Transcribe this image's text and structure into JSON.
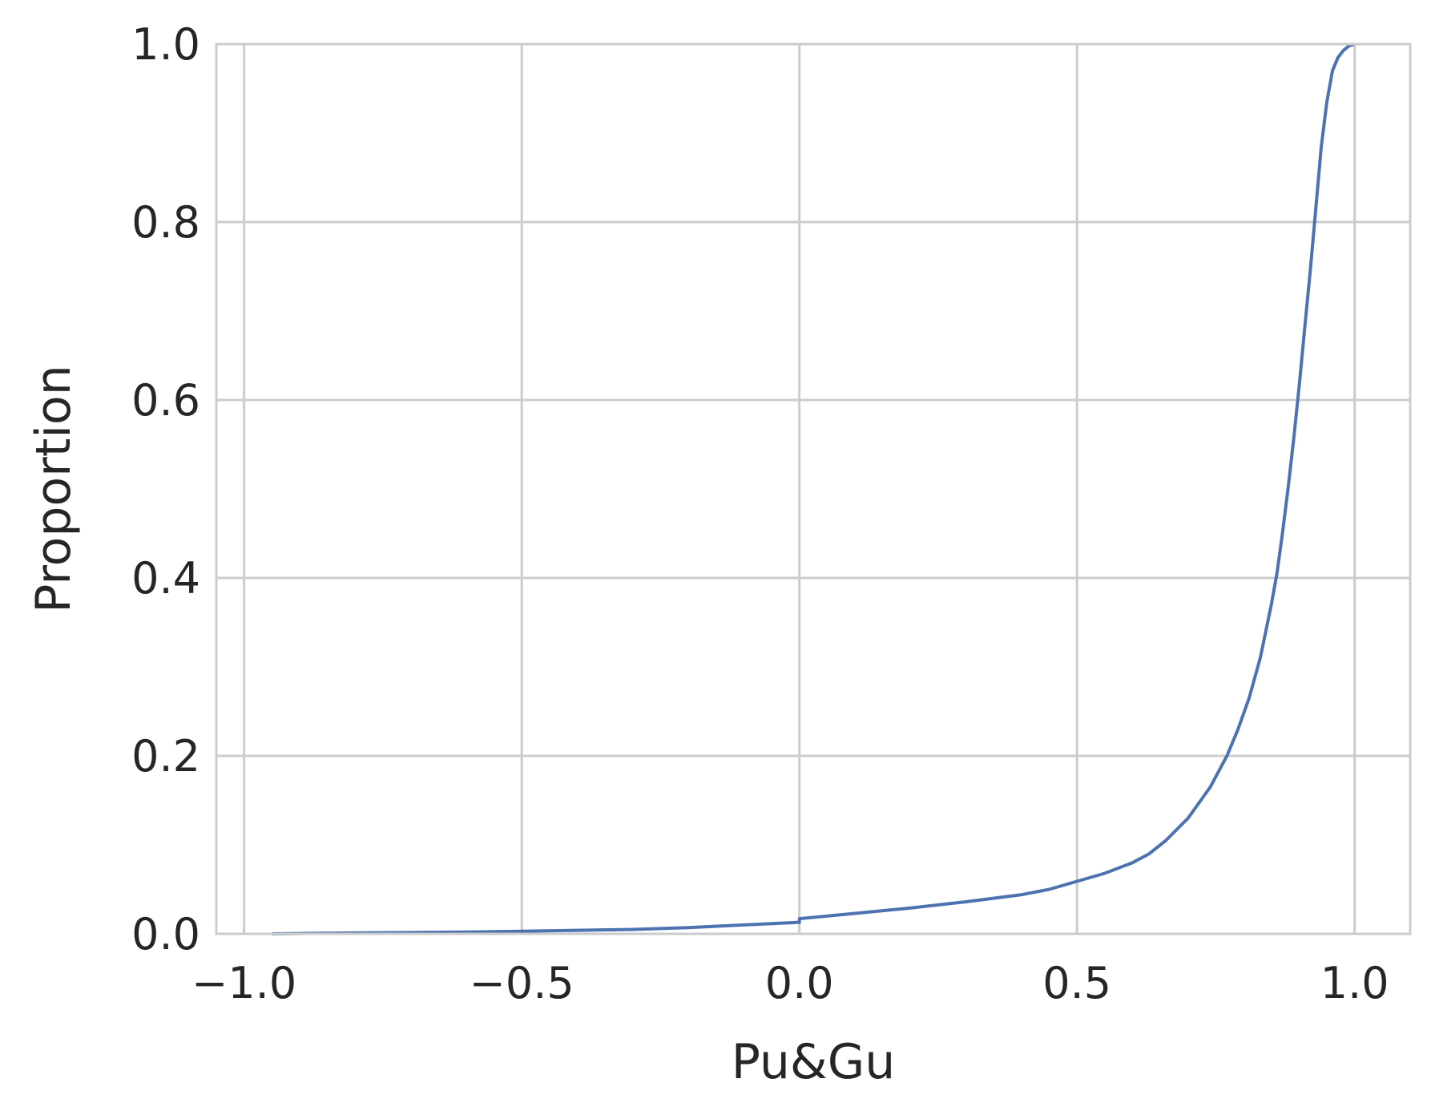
{
  "chart_data": {
    "type": "line",
    "title": "",
    "xlabel": "Pu&Gu",
    "ylabel": "Proportion",
    "xlim": [
      -1.05,
      1.1
    ],
    "ylim": [
      0.0,
      1.0
    ],
    "xticks": [
      -1.0,
      -0.5,
      0.0,
      0.5,
      1.0
    ],
    "xtick_labels": [
      "−1.0",
      "−0.5",
      "0.0",
      "0.5",
      "1.0"
    ],
    "yticks": [
      0.0,
      0.2,
      0.4,
      0.6,
      0.8,
      1.0
    ],
    "ytick_labels": [
      "0.0",
      "0.2",
      "0.4",
      "0.6",
      "0.8",
      "1.0"
    ],
    "grid": true,
    "line_color": "#4c72b0",
    "grid_color": "#cccccc",
    "text_color": "#262626",
    "series": [
      {
        "x": [
          -0.95,
          -0.8,
          -0.6,
          -0.4,
          -0.3,
          -0.2,
          -0.1,
          0.0,
          0.0,
          0.1,
          0.2,
          0.3,
          0.4,
          0.45,
          0.5,
          0.55,
          0.6,
          0.63,
          0.66,
          0.7,
          0.74,
          0.77,
          0.79,
          0.81,
          0.83,
          0.84,
          0.85,
          0.86,
          0.87,
          0.88,
          0.89,
          0.9,
          0.91,
          0.92,
          0.93,
          0.94,
          0.95,
          0.96,
          0.97,
          0.98,
          0.99,
          1.0
        ],
        "y": [
          0.0,
          0.001,
          0.002,
          0.004,
          0.005,
          0.007,
          0.01,
          0.013,
          0.017,
          0.023,
          0.029,
          0.036,
          0.044,
          0.05,
          0.059,
          0.068,
          0.08,
          0.09,
          0.105,
          0.13,
          0.165,
          0.2,
          0.23,
          0.265,
          0.31,
          0.34,
          0.37,
          0.405,
          0.45,
          0.5,
          0.555,
          0.615,
          0.68,
          0.745,
          0.815,
          0.885,
          0.935,
          0.97,
          0.985,
          0.993,
          0.998,
          1.0
        ]
      }
    ]
  }
}
